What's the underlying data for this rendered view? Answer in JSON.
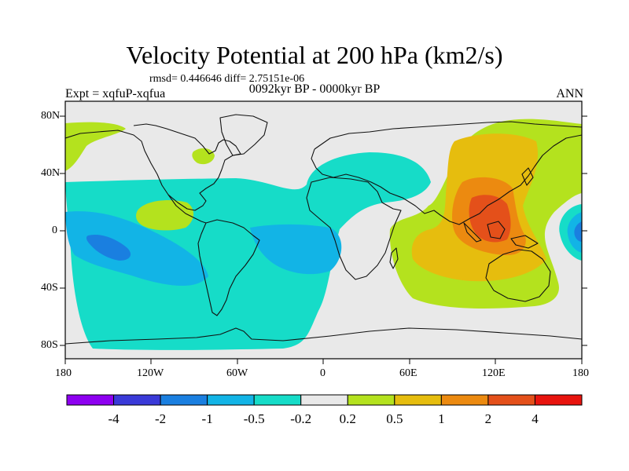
{
  "title": "Velocity Potential at 200 hPa (km2/s)",
  "stats": "rmsd= 0.446646 diff= 2.75151e-06",
  "left_label": "Expt = xqfuP-xqfua",
  "center_label": "0092kyr BP - 0000kyr BP",
  "right_label": "ANN",
  "lat_labels": [
    "80N",
    "40N",
    "0",
    "40S",
    "80S"
  ],
  "lon_labels": [
    "180",
    "120W",
    "60W",
    "0",
    "60E",
    "120E",
    "180"
  ],
  "colorbar": {
    "colors": [
      "#8d00f0",
      "#3a3ad8",
      "#1a7fe0",
      "#12b4e6",
      "#16dcc8",
      "#e9e9e9",
      "#b4e21e",
      "#e6bd0e",
      "#ec8a10",
      "#e4501a",
      "#e8140e"
    ],
    "labels": [
      "-4",
      "-2",
      "-1",
      "-0.5",
      "-0.2",
      "0.2",
      "0.5",
      "1",
      "2",
      "4"
    ]
  },
  "colors": {
    "background": "#e9e9e9",
    "coast": "#111111",
    "neg_0_2": "#16dcc8",
    "neg_0_5": "#12b4e6",
    "neg_1": "#1a7fe0",
    "pos_0_2": "#b4e21e",
    "pos_0_5": "#e6bd0e",
    "pos_1": "#ec8a10",
    "pos_2": "#e4501a"
  }
}
